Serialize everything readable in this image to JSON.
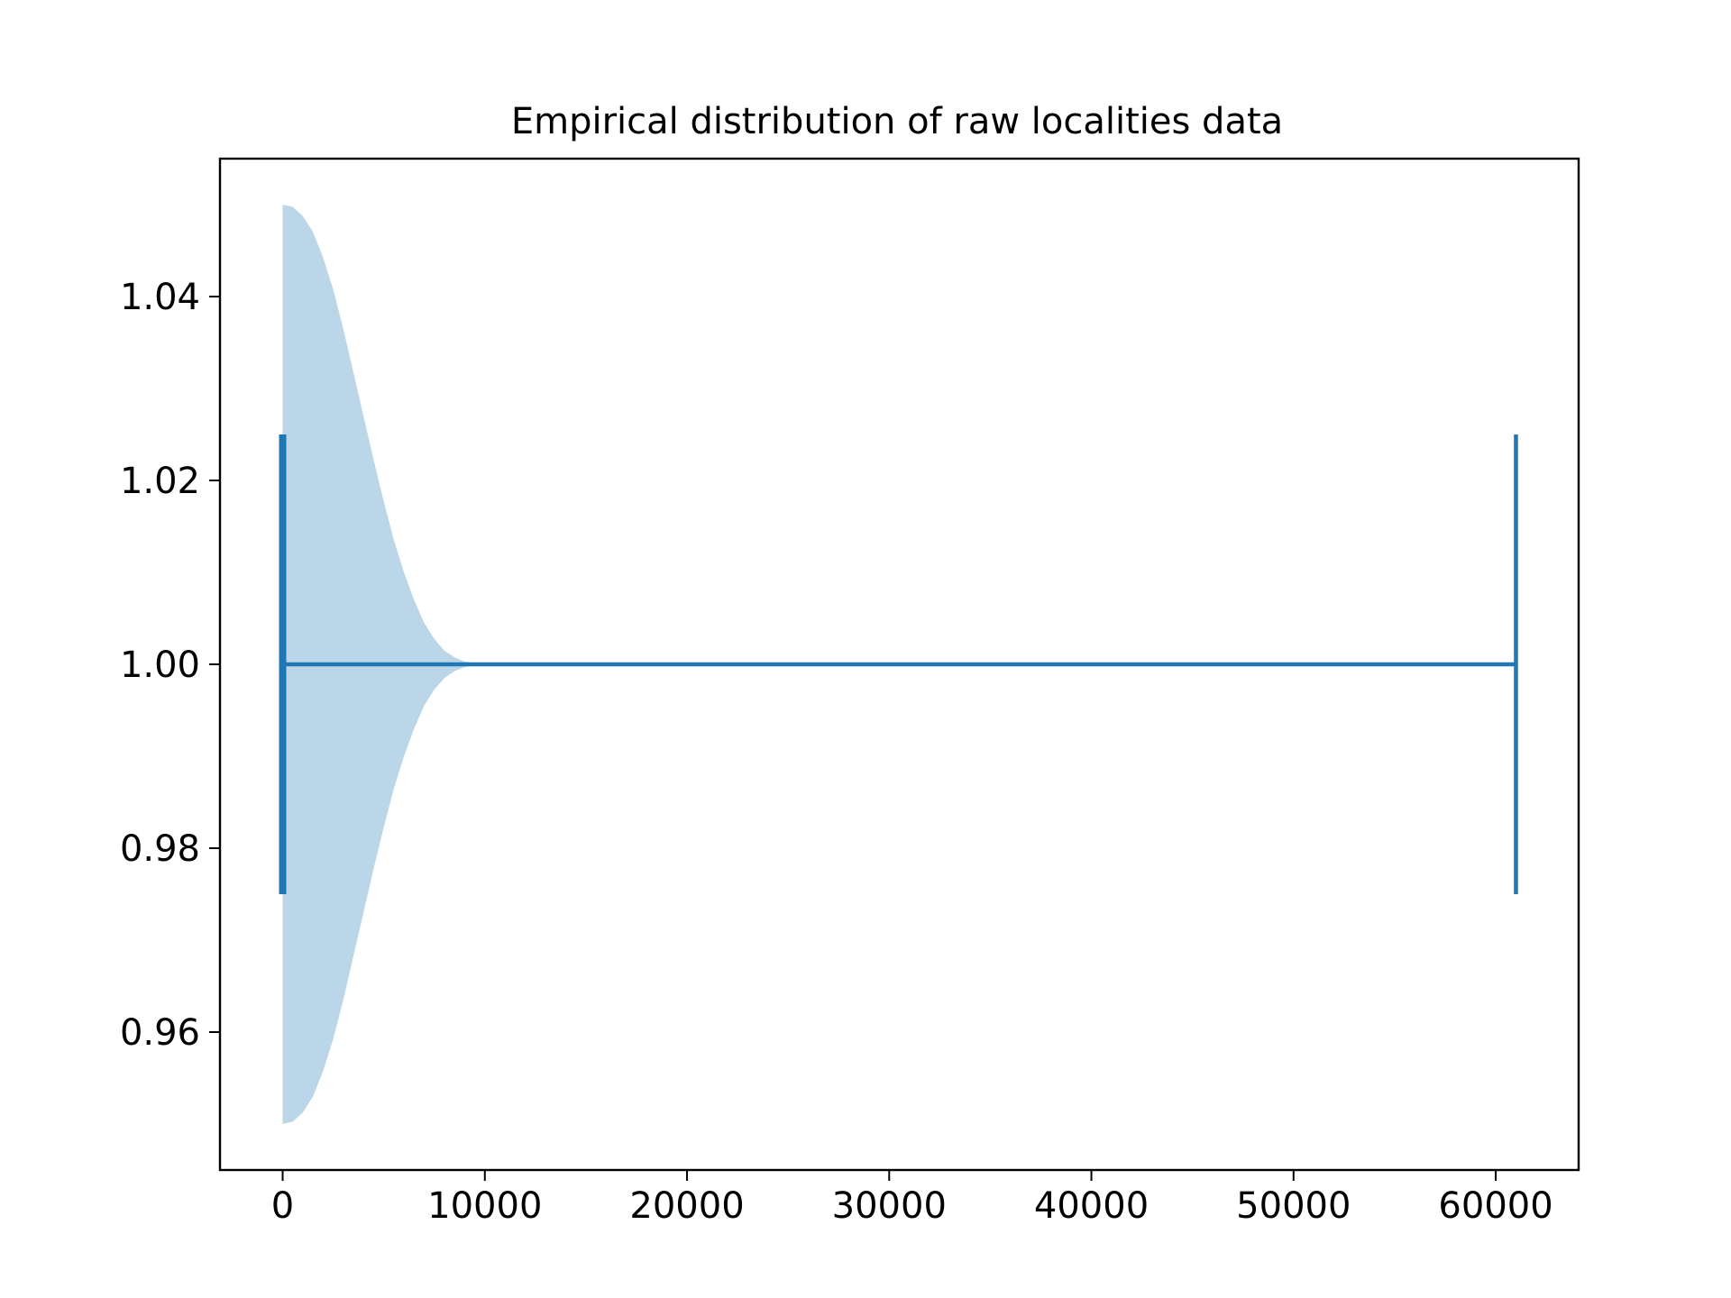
{
  "chart_data": {
    "type": "violin",
    "orientation": "horizontal",
    "title": "Empirical distribution of raw localities data",
    "xlabel": "",
    "ylabel": "",
    "xlim": [
      -3100,
      64100
    ],
    "ylim": [
      0.945,
      1.055
    ],
    "xticks": [
      0,
      10000,
      20000,
      30000,
      40000,
      50000,
      60000
    ],
    "xtick_labels": [
      "0",
      "10000",
      "20000",
      "30000",
      "40000",
      "50000",
      "60000"
    ],
    "yticks": [
      0.96,
      0.98,
      1.0,
      1.02,
      1.04
    ],
    "ytick_labels": [
      "0.96",
      "0.98",
      "1.00",
      "1.02",
      "1.04"
    ],
    "grid": false,
    "violin": {
      "position": 1.0,
      "min": 0,
      "max": 61000,
      "half_width": 0.05,
      "cap_half_height": 0.025,
      "density_profile": [
        {
          "x": 0,
          "w": 1.0
        },
        {
          "x": 500,
          "w": 0.995
        },
        {
          "x": 1000,
          "w": 0.975
        },
        {
          "x": 1500,
          "w": 0.94
        },
        {
          "x": 2000,
          "w": 0.885
        },
        {
          "x": 2500,
          "w": 0.815
        },
        {
          "x": 3000,
          "w": 0.73
        },
        {
          "x": 3500,
          "w": 0.635
        },
        {
          "x": 4000,
          "w": 0.54
        },
        {
          "x": 4500,
          "w": 0.445
        },
        {
          "x": 5000,
          "w": 0.355
        },
        {
          "x": 5500,
          "w": 0.27
        },
        {
          "x": 6000,
          "w": 0.2
        },
        {
          "x": 6500,
          "w": 0.14
        },
        {
          "x": 7000,
          "w": 0.09
        },
        {
          "x": 7500,
          "w": 0.055
        },
        {
          "x": 8000,
          "w": 0.03
        },
        {
          "x": 8500,
          "w": 0.015
        },
        {
          "x": 9000,
          "w": 0.006
        },
        {
          "x": 9500,
          "w": 0.002
        },
        {
          "x": 10000,
          "w": 0.0
        }
      ]
    },
    "colors": {
      "body": "#1f77b4",
      "body_opacity": 0.3,
      "lines": "#1f77b4"
    }
  }
}
